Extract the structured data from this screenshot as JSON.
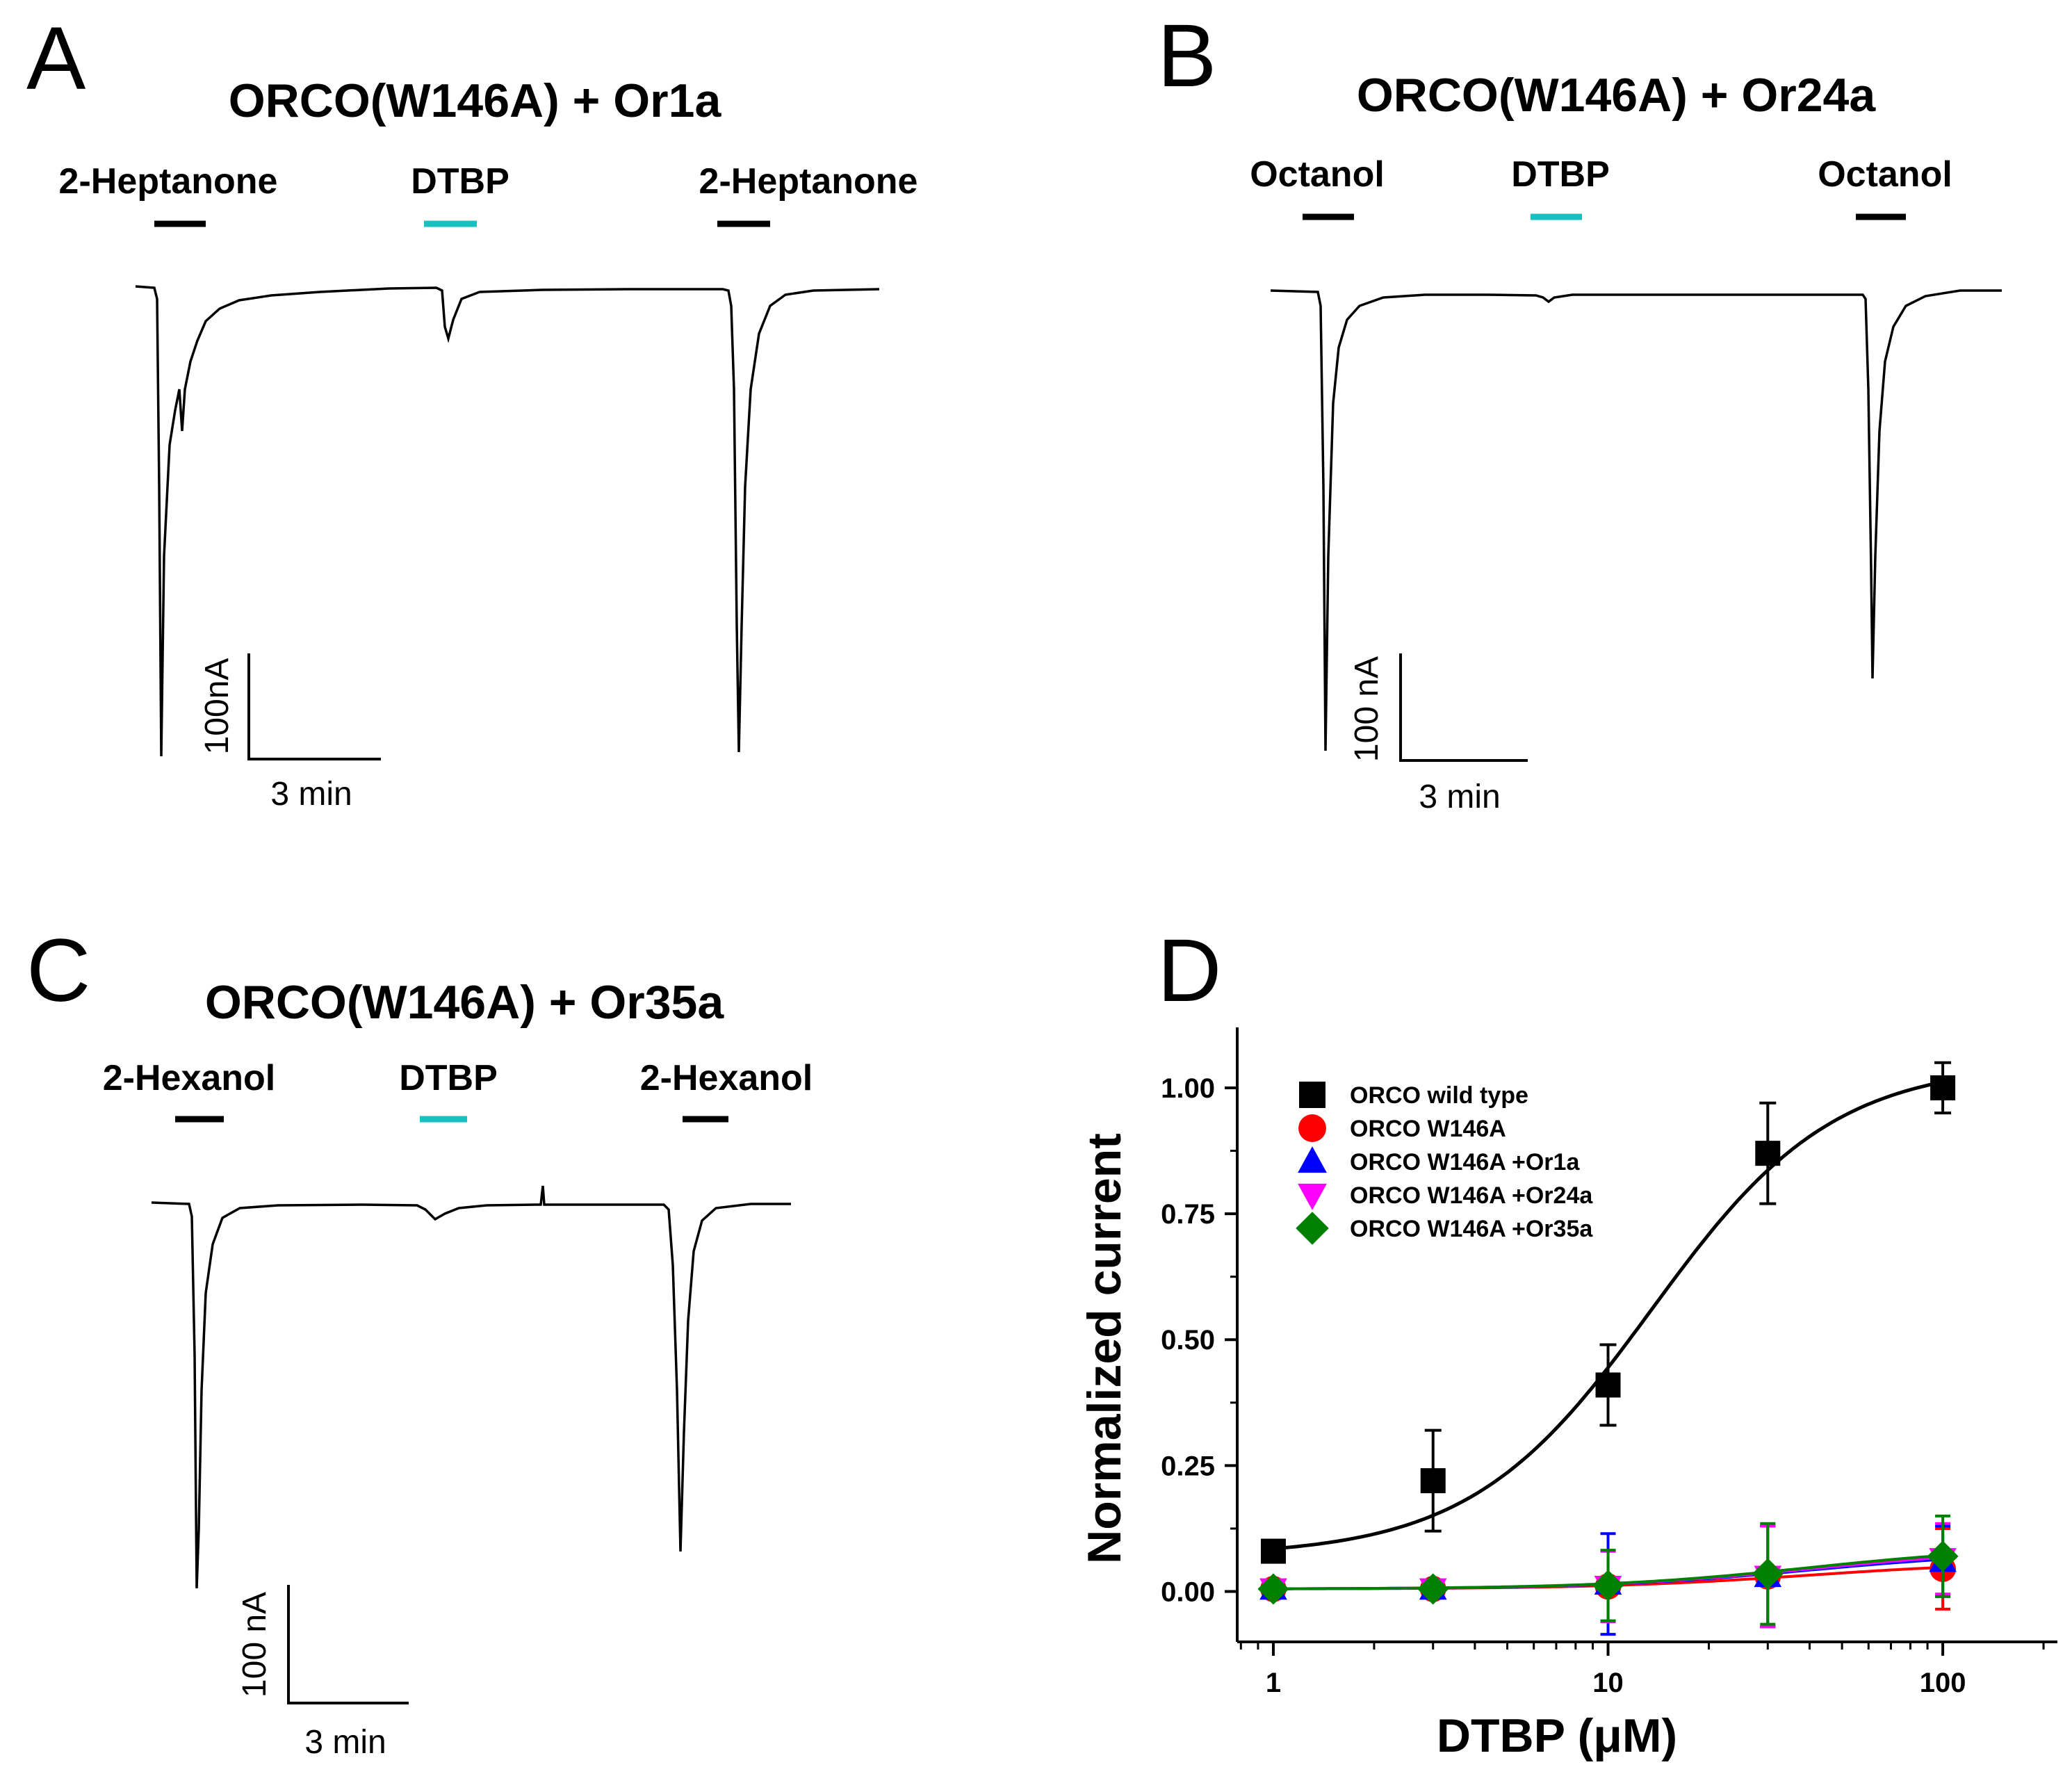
{
  "panels": [
    {
      "letter": "A",
      "title": "ORCO(W146A) + Or1a",
      "stimuli": [
        {
          "label": "2-Heptanone",
          "color": "#000000"
        },
        {
          "label": "DTBP",
          "color": "#1ABFBF"
        },
        {
          "label": "2-Heptanone",
          "color": "#000000"
        }
      ],
      "scale": {
        "current": "100nA",
        "time": "3 min"
      }
    },
    {
      "letter": "B",
      "title": "ORCO(W146A) + Or24a",
      "stimuli": [
        {
          "label": "Octanol",
          "color": "#000000"
        },
        {
          "label": "DTBP",
          "color": "#1ABFBF"
        },
        {
          "label": "Octanol",
          "color": "#000000"
        }
      ],
      "scale": {
        "current": "100 nA",
        "time": "3 min"
      }
    },
    {
      "letter": "C",
      "title": "ORCO(W146A) + Or35a",
      "stimuli": [
        {
          "label": "2-Hexanol",
          "color": "#000000"
        },
        {
          "label": "DTBP",
          "color": "#1ABFBF"
        },
        {
          "label": "2-Hexanol",
          "color": "#000000"
        }
      ],
      "scale": {
        "current": "100 nA",
        "time": "3 min"
      }
    }
  ],
  "chart_data": {
    "letter": "D",
    "type": "scatter",
    "x_scale": "log",
    "xlabel": "DTBP (μM)",
    "ylabel": "Normalized current",
    "xlim": [
      0.78,
      220
    ],
    "ylim": [
      -0.1,
      1.12
    ],
    "xticks": [
      1,
      10,
      100
    ],
    "xtick_labels": [
      "1",
      "10",
      "100"
    ],
    "yticks": [
      0,
      0.25,
      0.5,
      0.75,
      1.0
    ],
    "ytick_labels": [
      "0.00",
      "0.25",
      "0.50",
      "0.75",
      "1.00"
    ],
    "x": [
      1,
      3,
      10,
      30,
      100
    ],
    "series": [
      {
        "name": "ORCO wild type",
        "marker": "square",
        "color": "#000000",
        "values": [
          0.08,
          0.22,
          0.41,
          0.87,
          1.0
        ],
        "errors": [
          0.01,
          0.1,
          0.08,
          0.1,
          0.05
        ],
        "fit": {
          "bottom": 0.07,
          "top": 1.05,
          "ec50": 13.5,
          "hill": 1.6
        }
      },
      {
        "name": "ORCO W146A",
        "marker": "circle",
        "color": "#FF0000",
        "values": [
          0.005,
          0.005,
          0.01,
          0.03,
          0.045
        ],
        "errors": [
          0.01,
          0.01,
          0.07,
          0.1,
          0.08
        ],
        "fit": {
          "bottom": 0.005,
          "top": 0.06,
          "ec50": 40,
          "hill": 1.4
        }
      },
      {
        "name": "ORCO W146A +Or1a",
        "marker": "triangle-up",
        "color": "#0000FF",
        "values": [
          0.005,
          0.005,
          0.015,
          0.03,
          0.06
        ],
        "errors": [
          0.01,
          0.01,
          0.1,
          0.1,
          0.07
        ],
        "fit": {
          "bottom": 0.005,
          "top": 0.08,
          "ec50": 40,
          "hill": 1.4
        }
      },
      {
        "name": "ORCO W146A +Or24a",
        "marker": "triangle-down",
        "color": "#FF00FF",
        "values": [
          0.005,
          0.005,
          0.01,
          0.03,
          0.065
        ],
        "errors": [
          0.01,
          0.01,
          0.07,
          0.1,
          0.07
        ],
        "fit": {
          "bottom": 0.005,
          "top": 0.085,
          "ec50": 40,
          "hill": 1.4
        }
      },
      {
        "name": "ORCO W146A +Or35a",
        "marker": "diamond",
        "color": "#008000",
        "values": [
          0.005,
          0.005,
          0.012,
          0.035,
          0.07
        ],
        "errors": [
          0.01,
          0.01,
          0.07,
          0.1,
          0.08
        ],
        "fit": {
          "bottom": 0.005,
          "top": 0.09,
          "ec50": 40,
          "hill": 1.4
        }
      }
    ]
  }
}
